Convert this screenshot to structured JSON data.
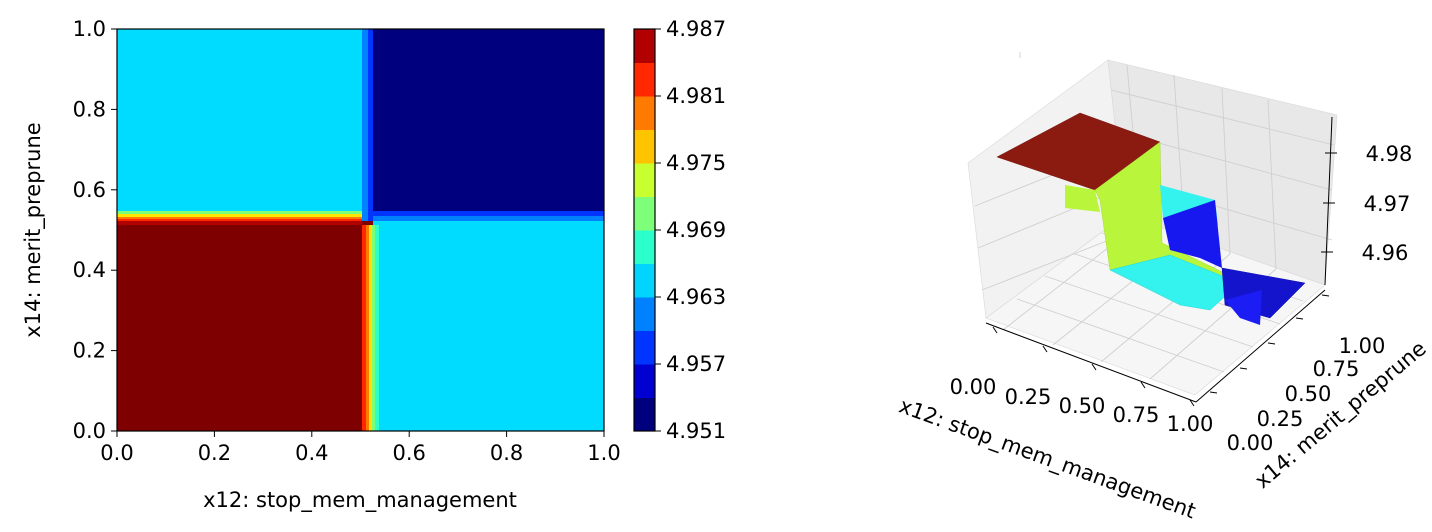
{
  "chart_data": [
    {
      "type": "heatmap",
      "subtype": "filled-contour",
      "xlabel": "x12: stop_mem_management",
      "ylabel": "x14: merit_preprune",
      "xlim": [
        0,
        1
      ],
      "ylim": [
        0,
        1
      ],
      "xticks": [
        "0.0",
        "0.2",
        "0.4",
        "0.6",
        "0.8",
        "1.0"
      ],
      "yticks": [
        "0.0",
        "0.2",
        "0.4",
        "0.6",
        "0.8",
        "1.0"
      ],
      "colormap": "jet",
      "regions": [
        {
          "x": [
            0.0,
            0.52
          ],
          "y": [
            0.0,
            0.52
          ],
          "z": 4.987
        },
        {
          "x": [
            0.52,
            1.0
          ],
          "y": [
            0.0,
            0.52
          ],
          "z": 4.963
        },
        {
          "x": [
            0.0,
            0.52
          ],
          "y": [
            0.52,
            1.0
          ],
          "z": 4.963
        },
        {
          "x": [
            0.52,
            1.0
          ],
          "y": [
            0.52,
            1.0
          ],
          "z": 4.951
        }
      ],
      "colorbar": {
        "ticks": [
          "4.987",
          "4.981",
          "4.975",
          "4.969",
          "4.963",
          "4.957",
          "4.951"
        ],
        "range": [
          4.951,
          4.987
        ],
        "levels": 12,
        "colors": [
          "#00007f",
          "#0000d1",
          "#0035ff",
          "#0081ff",
          "#00d4ff",
          "#2bffcb",
          "#7dff7a",
          "#c8ff2f",
          "#ffc400",
          "#ff7a00",
          "#ff2800",
          "#b10000"
        ]
      }
    },
    {
      "type": "surface3d",
      "xlabel": "x12: stop_mem_management",
      "ylabel": "x14: merit_preprune",
      "xticks": [
        "0.00",
        "0.25",
        "0.50",
        "0.75",
        "1.00"
      ],
      "yticks": [
        "0.00",
        "0.25",
        "0.50",
        "0.75",
        "1.00"
      ],
      "zticks": [
        "4.96",
        "4.97",
        "4.98"
      ],
      "regions": [
        {
          "x": [
            0.0,
            0.5
          ],
          "y": [
            0.0,
            0.5
          ],
          "z": 4.987,
          "color": "#8b1a10"
        },
        {
          "x": [
            0.5,
            1.0
          ],
          "y": [
            0.0,
            0.5
          ],
          "z": 4.963,
          "color": "#2cf7f2"
        },
        {
          "x": [
            0.0,
            0.5
          ],
          "y": [
            0.5,
            1.0
          ],
          "z": 4.963,
          "color": "#2cf7f2"
        },
        {
          "x": [
            0.5,
            1.0
          ],
          "y": [
            0.5,
            1.0
          ],
          "z": 4.951,
          "color": "#1414e6"
        }
      ]
    }
  ]
}
